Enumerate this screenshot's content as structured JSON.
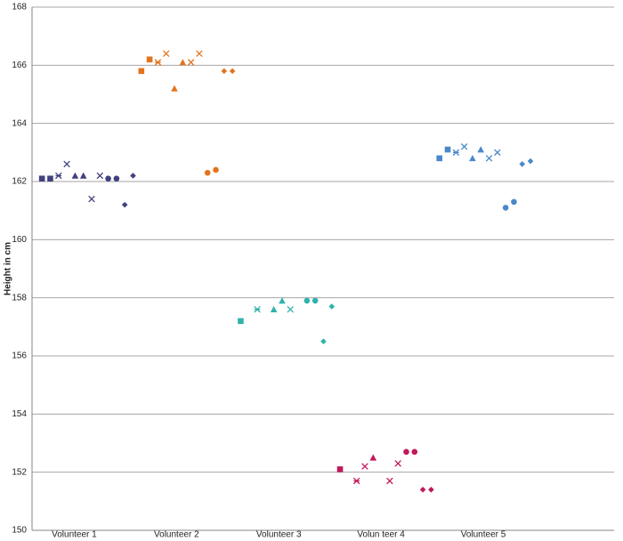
{
  "chart_data": {
    "type": "scatter",
    "ylabel": "Height in cm",
    "categories": [
      "Volunteer 1",
      "Volunteer 2",
      "Volunteer 3",
      "Volun teer 4",
      "Volunteer 5"
    ],
    "markers": [
      "square",
      "square",
      "star",
      "x",
      "triangle",
      "triangle",
      "x",
      "x",
      "circle",
      "circle",
      "diamond",
      "diamond"
    ],
    "series": [
      {
        "color": "#41417f",
        "values": [
          162.1,
          162.1,
          162.2,
          162.6,
          162.2,
          162.2,
          161.4,
          162.2,
          162.1,
          162.1,
          161.2,
          162.2
        ]
      },
      {
        "color": "#e3741f",
        "values": [
          165.8,
          166.2,
          166.1,
          166.4,
          165.2,
          166.1,
          166.1,
          166.4,
          162.3,
          162.4,
          165.8,
          165.8
        ]
      },
      {
        "color": "#2fb3ab",
        "values": [
          157.2,
          null,
          157.6,
          null,
          157.6,
          157.9,
          157.6,
          null,
          157.9,
          157.9,
          156.5,
          157.7
        ]
      },
      {
        "color": "#c2185b",
        "values": [
          152.1,
          null,
          151.7,
          152.2,
          152.5,
          null,
          151.7,
          152.3,
          152.7,
          152.7,
          151.4,
          151.4
        ]
      },
      {
        "color": "#4a88c9",
        "values": [
          162.8,
          163.1,
          163.0,
          163.2,
          162.8,
          163.1,
          162.8,
          163.0,
          161.1,
          161.3,
          162.6,
          162.7
        ]
      }
    ],
    "ylim": [
      150,
      168
    ],
    "yticks": [
      150,
      152,
      154,
      156,
      158,
      160,
      162,
      164,
      166,
      168
    ],
    "grid": true
  }
}
